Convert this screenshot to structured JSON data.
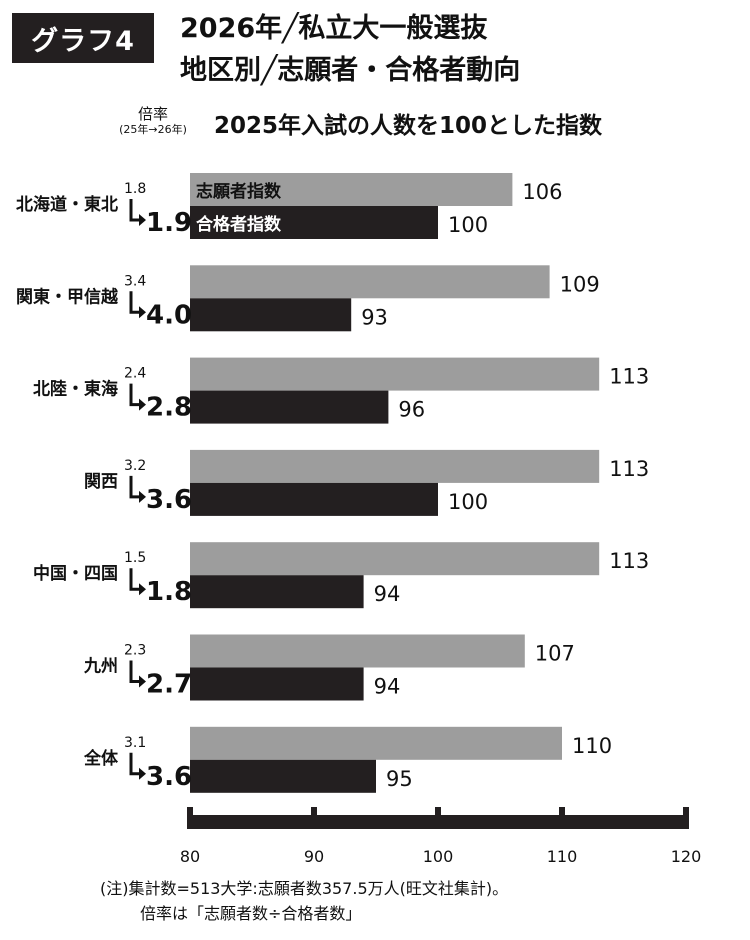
{
  "header": {
    "badge": "グラフ4",
    "title_line1": "2026年╱私立大一般選抜",
    "title_line2": "地区別╱志願者・合格者動向"
  },
  "ratio_header": {
    "label": "倍率",
    "sub": "(25年→26年)"
  },
  "chart_data": {
    "type": "bar",
    "orientation": "horizontal",
    "title": "2025年入試の人数を100とした指数",
    "categories": [
      "北海道・東北",
      "関東・甲信越",
      "北陸・東海",
      "関西",
      "中国・四国",
      "九州",
      "全体"
    ],
    "series": [
      {
        "name": "志願者指数",
        "values": [
          106,
          109,
          113,
          113,
          113,
          107,
          110
        ],
        "color": "#9d9d9d"
      },
      {
        "name": "合格者指数",
        "values": [
          100,
          93,
          96,
          100,
          94,
          94,
          95
        ],
        "color": "#231f20"
      }
    ],
    "ratio_2025": [
      "1.8",
      "3.4",
      "2.4",
      "3.2",
      "1.5",
      "2.3",
      "3.1"
    ],
    "ratio_2026": [
      "1.9",
      "4.0",
      "2.8",
      "3.6",
      "1.8",
      "2.7",
      "3.6"
    ],
    "xlim": [
      80,
      120
    ],
    "ticks": [
      80,
      90,
      100,
      110,
      120
    ],
    "legend_position": "inside-first-bars",
    "grid": false
  },
  "notes": {
    "line1": "(注)集計数=513大学:志願者数357.5万人(旺文社集計)。",
    "line2": "倍率は「志願者数÷合格者数」"
  }
}
